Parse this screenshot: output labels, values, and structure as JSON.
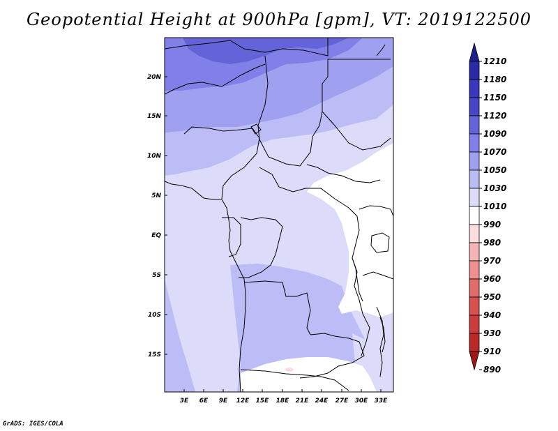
{
  "title": "Geopotential Height at 900hPa [gpm], VT: 2019122500",
  "credit": "GrADS: IGES/COLA",
  "map": {
    "x_ticks": [
      "3E",
      "6E",
      "9E",
      "12E",
      "15E",
      "18E",
      "21E",
      "24E",
      "27E",
      "30E",
      "33E"
    ],
    "y_ticks": [
      "20N",
      "15N",
      "10N",
      "5N",
      "EQ",
      "5S",
      "10S",
      "15S"
    ]
  },
  "colorbar": {
    "labels": [
      "1210",
      "1180",
      "1150",
      "1120",
      "1090",
      "1070",
      "1050",
      "1030",
      "1010",
      "990",
      "980",
      "970",
      "960",
      "950",
      "940",
      "930",
      "910",
      "890"
    ],
    "colors": [
      "#1e1e8c",
      "#2a2aa8",
      "#3838bc",
      "#4646c8",
      "#6464d8",
      "#8080e8",
      "#a0a0f0",
      "#bcbcf6",
      "#dcdcfa",
      "#ffffff",
      "#fcdcdc",
      "#f6b4b4",
      "#ee9090",
      "#e06c6c",
      "#d85050",
      "#cc3c3c",
      "#bb2828",
      "#a01818"
    ]
  }
}
